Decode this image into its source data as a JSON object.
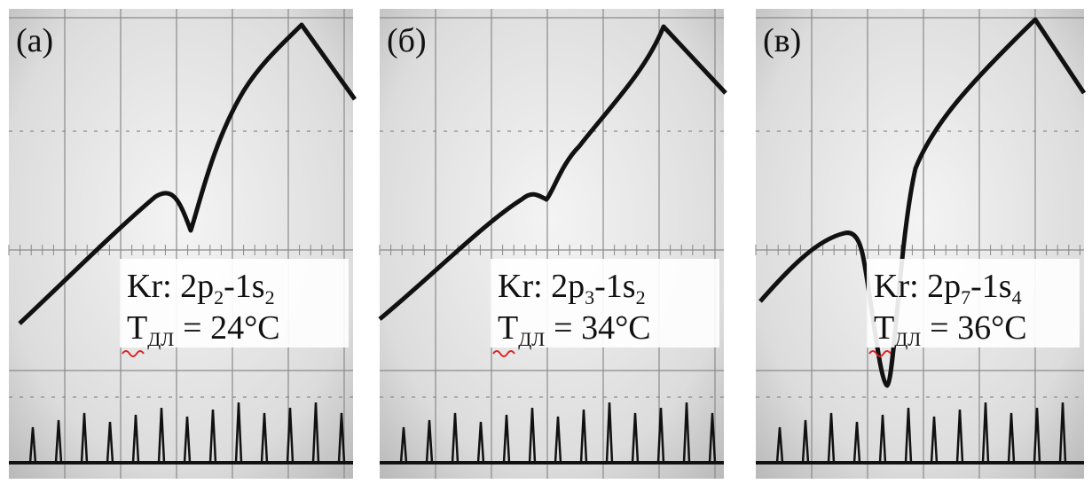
{
  "panels": [
    {
      "label": "(a)",
      "line": {
        "prefix": "Kr: 2p",
        "sub1": "2",
        "mid": "-1s",
        "sub2": "2"
      },
      "temperature": {
        "symbol": "T",
        "sub": "ДЛ",
        "value": "= 24°C"
      }
    },
    {
      "label": "(б)",
      "line": {
        "prefix": "Kr: 2p",
        "sub1": "3",
        "mid": "-1s",
        "sub2": "2"
      },
      "temperature": {
        "symbol": "T",
        "sub": "ДЛ",
        "value": "= 34°C"
      }
    },
    {
      "label": "(в)",
      "line": {
        "prefix": "Kr: 2p",
        "sub1": "7",
        "mid": "-1s",
        "sub2": "4"
      },
      "temperature": {
        "symbol": "T",
        "sub": "ДЛ",
        "value": "= 36°C"
      }
    }
  ]
}
